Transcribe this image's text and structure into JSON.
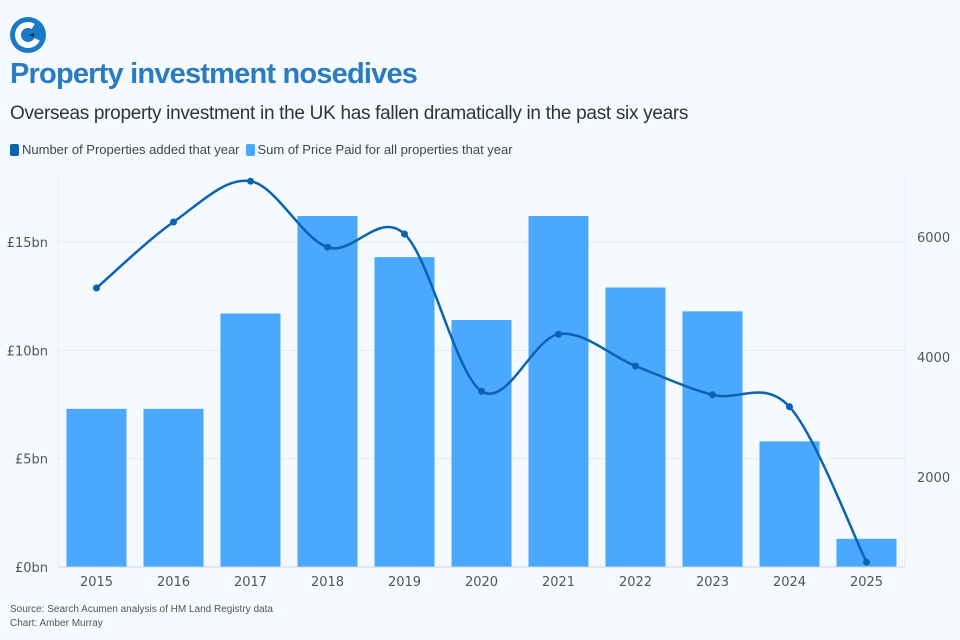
{
  "title": "Property investment nosedives",
  "subtitle": "Overseas property investment in the UK has fallen dramatically in the past six years",
  "legend": [
    "Number of Properties added that year",
    "Sum of Price Paid for all properties that year"
  ],
  "source": "Source: Search Acumen analysis of HM Land Registry data",
  "credit": "Chart: Amber Murray",
  "colors": {
    "line": "#0c63b0",
    "bars": "#4aa8ff",
    "title": "#2a7bc0"
  },
  "chart_data": {
    "type": "bar+line",
    "categories": [
      "2015",
      "2016",
      "2017",
      "2018",
      "2019",
      "2020",
      "2021",
      "2022",
      "2023",
      "2024",
      "2025"
    ],
    "series": [
      {
        "name": "Sum of Price Paid for all properties that year",
        "type": "bar",
        "axis": "left",
        "unit": "£bn",
        "values": [
          7.3,
          7.3,
          11.7,
          16.2,
          14.3,
          11.4,
          16.2,
          12.9,
          11.8,
          5.8,
          1.3
        ]
      },
      {
        "name": "Number of Properties added that year",
        "type": "line",
        "axis": "right",
        "values": [
          5150,
          6250,
          6930,
          5830,
          6050,
          3430,
          4380,
          3850,
          3370,
          3170,
          580
        ]
      }
    ],
    "left_axis": {
      "ylim": [
        0,
        18
      ],
      "ticks": [
        0,
        5,
        10,
        15
      ],
      "tick_labels": [
        "£0bn",
        "£5bn",
        "£10bn",
        "£15bn"
      ]
    },
    "right_axis": {
      "ylim": [
        500,
        7000
      ],
      "ticks": [
        2000,
        4000,
        6000
      ],
      "tick_labels": [
        "2000",
        "4000",
        "6000"
      ]
    },
    "grid": true,
    "legend_position": "top-left"
  }
}
